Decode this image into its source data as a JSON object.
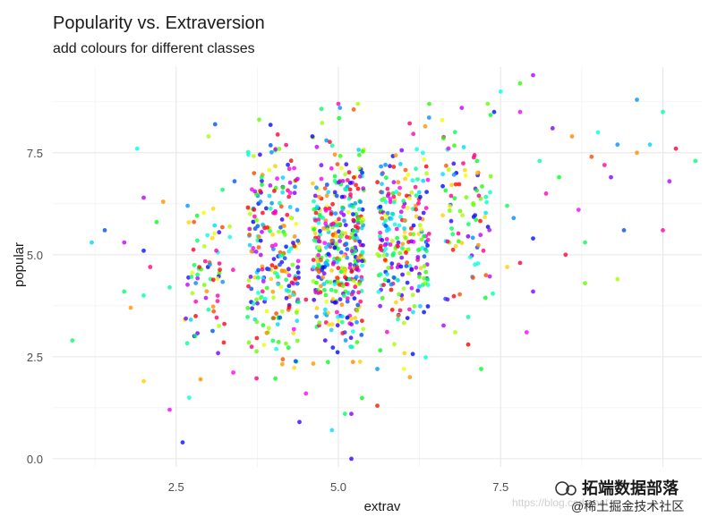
{
  "chart_data": {
    "type": "scatter",
    "title": "Popularity vs. Extraversion",
    "subtitle": "add colours for different classes",
    "xlabel": "extrav",
    "ylabel": "popular",
    "xlim": [
      0.6,
      10.6
    ],
    "ylim": [
      -0.2,
      9.6
    ],
    "x_ticks": [
      2.5,
      5.0,
      7.5
    ],
    "x_tick_labels": [
      "2.5",
      "5.0",
      "7.5"
    ],
    "y_ticks": [
      0.0,
      2.5,
      5.0,
      7.5
    ],
    "y_tick_labels": [
      "0.0",
      "2.5",
      "5.0",
      "7.5"
    ],
    "grid": true,
    "legend": "none",
    "color_by": "class",
    "n_classes": 100,
    "point_alpha": 0.8,
    "x_jitter": 0.4,
    "points": [
      [
        0.9,
        2.9,
        72
      ],
      [
        1.2,
        5.3,
        50
      ],
      [
        1.4,
        5.6,
        66
      ],
      [
        1.7,
        4.1,
        95
      ],
      [
        1.8,
        3.7,
        85
      ],
      [
        1.7,
        5.3,
        98
      ],
      [
        1.9,
        7.6,
        65
      ],
      [
        2.0,
        6.4,
        52
      ],
      [
        2.0,
        5.1,
        28
      ],
      [
        2.1,
        4.7,
        30
      ],
      [
        2.2,
        5.8,
        18
      ],
      [
        2.0,
        4.0,
        57
      ],
      [
        2.0,
        1.9,
        47
      ],
      [
        2.3,
        6.3,
        62
      ],
      [
        2.4,
        4.2,
        11
      ],
      [
        2.4,
        1.2,
        60
      ],
      [
        2.6,
        0.4,
        28
      ],
      [
        2.7,
        1.5,
        88
      ],
      [
        3.0,
        7.9,
        40
      ],
      [
        3.1,
        8.2,
        66
      ],
      [
        3.4,
        6.8,
        20
      ],
      [
        3.7,
        7.0,
        8
      ],
      [
        3.8,
        6.3,
        81
      ],
      [
        4.5,
        1.6,
        83
      ],
      [
        4.5,
        3.9,
        15
      ],
      [
        4.4,
        0.9,
        82
      ],
      [
        4.6,
        7.9,
        74
      ],
      [
        5.0,
        8.7,
        68
      ],
      [
        5.3,
        8.7,
        63
      ],
      [
        4.9,
        0.7,
        4
      ],
      [
        5.2,
        0.0,
        82
      ],
      [
        5.1,
        1.1,
        95
      ],
      [
        5.2,
        1.1,
        90
      ],
      [
        5.6,
        1.3,
        92
      ],
      [
        5.6,
        2.2,
        12
      ],
      [
        6.4,
        8.7,
        56
      ],
      [
        6.3,
        7.5,
        42
      ],
      [
        6.1,
        2.0,
        85
      ],
      [
        6.6,
        8.3,
        55
      ],
      [
        6.9,
        8.6,
        75
      ],
      [
        7.3,
        8.7,
        48
      ],
      [
        7.4,
        8.5,
        28
      ],
      [
        7.5,
        9.0,
        65
      ],
      [
        7.2,
        2.2,
        87
      ],
      [
        6.8,
        3.1,
        17
      ],
      [
        7.0,
        2.8,
        0
      ],
      [
        7.8,
        9.2,
        33
      ],
      [
        8.0,
        9.4,
        29
      ],
      [
        7.8,
        8.5,
        37
      ],
      [
        8.3,
        8.1,
        67
      ],
      [
        8.1,
        7.3,
        80
      ],
      [
        8.0,
        5.4,
        28
      ],
      [
        7.8,
        4.8,
        84
      ],
      [
        7.6,
        4.7,
        47
      ],
      [
        8.0,
        4.1,
        90
      ],
      [
        7.9,
        3.1,
        14
      ],
      [
        8.2,
        6.5,
        91
      ],
      [
        8.6,
        7.9,
        16
      ],
      [
        8.5,
        5.0,
        38
      ],
      [
        8.8,
        5.3,
        3
      ],
      [
        8.9,
        7.4,
        31
      ],
      [
        8.8,
        4.3,
        94
      ],
      [
        9.1,
        7.2,
        68
      ],
      [
        9.3,
        7.7,
        35
      ],
      [
        9.3,
        4.4,
        86
      ],
      [
        9.2,
        6.9,
        90
      ],
      [
        9.6,
        7.5,
        39
      ],
      [
        9.8,
        7.7,
        50
      ],
      [
        9.6,
        8.8,
        35
      ],
      [
        10.0,
        8.5,
        34
      ],
      [
        10.1,
        6.8,
        29
      ],
      [
        10.2,
        7.6,
        38
      ],
      [
        10.5,
        7.3,
        95
      ],
      [
        10.0,
        5.6,
        91
      ],
      [
        9.4,
        5.6,
        66
      ],
      [
        9.0,
        8.0,
        42
      ],
      [
        8.7,
        6.1,
        37
      ],
      [
        8.4,
        6.9,
        87
      ],
      [
        7.6,
        6.2,
        26
      ],
      [
        7.7,
        5.9,
        81
      ]
    ]
  }
}
